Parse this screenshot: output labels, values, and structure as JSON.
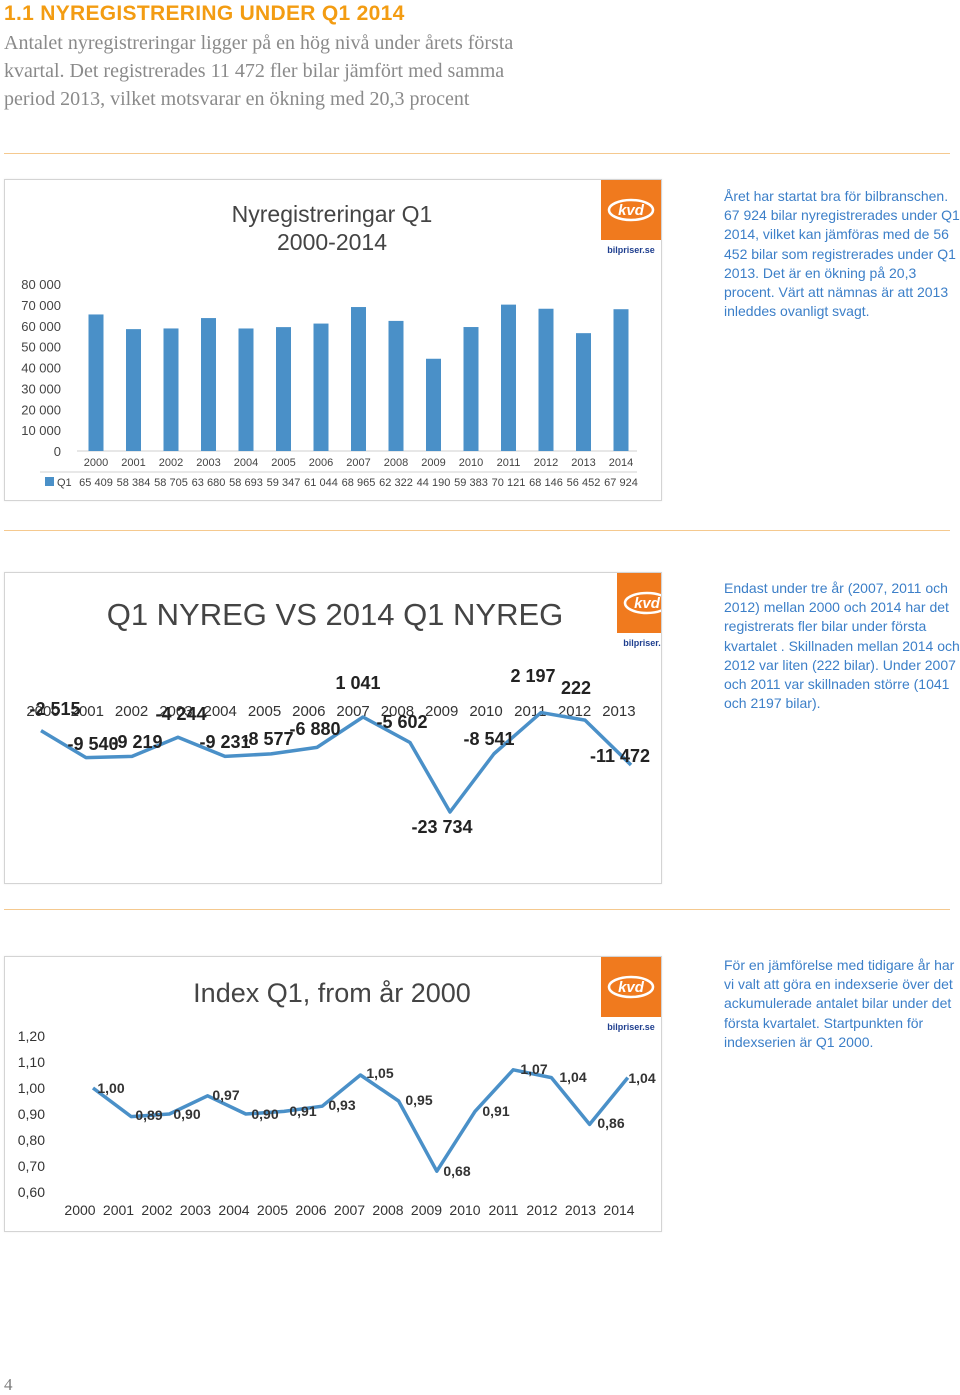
{
  "header": {
    "title": "1.1 NYREGISTRERING UNDER Q1 2014",
    "lead": [
      "Antalet nyregistreringar ligger på en hög nivå under årets första",
      "kvartal. Det registrerades 11 472 fler bilar jämfört med samma",
      "period 2013, vilket motsvarar en ökning med 20,3 procent"
    ]
  },
  "logo": {
    "mark": "kvd",
    "site": "bilpriser.se",
    "color": "#f07a1e"
  },
  "section1": {
    "side_text": "Året har startat bra för bilbranschen. 67 924 bilar nyregistrerades under Q1 2014, vilket kan jämföras med de 56 452 bilar som registrerades under Q1 2013. Det är en ökning på 20,3 procent. Värt att nämnas är att 2013 inleddes ovanligt svagt."
  },
  "section2": {
    "side_text": "Endast under tre år (2007, 2011 och 2012) mellan 2000 och 2014 har det registrerats fler bilar under första kvartalet . Skillnaden mellan 2014 och 2012 var liten (222 bilar). Under 2007 och 2011 var skillnaden större (1041 och 2197 bilar)."
  },
  "section3": {
    "side_text": "För en jämförelse med tidigare år har vi valt att göra en indexserie över det ackumulerade antalet bilar under det första kvartalet.  Startpunkten för indexserien är Q1 2000."
  },
  "page_number": "4",
  "chart_data": [
    {
      "type": "bar",
      "title": [
        "Nyregistreringar Q1",
        "2000-2014"
      ],
      "categories": [
        "2000",
        "2001",
        "2002",
        "2003",
        "2004",
        "2005",
        "2006",
        "2007",
        "2008",
        "2009",
        "2010",
        "2011",
        "2012",
        "2013",
        "2014"
      ],
      "series": [
        {
          "name": "Q1",
          "values": [
            65409,
            58384,
            58705,
            63680,
            58693,
            59347,
            61044,
            68965,
            62322,
            44190,
            59383,
            70121,
            68146,
            56452,
            67924
          ]
        }
      ],
      "table_labels": [
        "65 409",
        "58 384",
        "58 705",
        "63 680",
        "58 693",
        "59 347",
        "61 044",
        "68 965",
        "62 322",
        "44 190",
        "59 383",
        "70 121",
        "68 146",
        "56 452",
        "67 924"
      ],
      "yticks": [
        "0",
        "10 000",
        "20 000",
        "30 000",
        "40 000",
        "50 000",
        "60 000",
        "70 000",
        "80 000"
      ],
      "ylim": [
        0,
        80000
      ],
      "grid": false,
      "legend": "data-table-left",
      "color": "#4a90c8"
    },
    {
      "type": "line",
      "title": "Q1 NYREG VS 2014 Q1 NYREG",
      "categories": [
        "2000",
        "2001",
        "2002",
        "2003",
        "2004",
        "2005",
        "2006",
        "2007",
        "2008",
        "2009",
        "2010",
        "2011",
        "2012",
        "2013"
      ],
      "values": [
        -2515,
        -9540,
        -9219,
        -4244,
        -9231,
        -8577,
        -6880,
        1041,
        -5602,
        -23734,
        -8541,
        2197,
        222,
        -11472
      ],
      "value_labels": [
        "-2 515",
        "-9 540",
        "-9 219",
        "-4 244",
        "-9 231",
        "-8 577",
        "-6 880",
        "1 041",
        "-5 602",
        "-23 734",
        "-8 541",
        "2 197",
        "222",
        "-11 472"
      ],
      "ylim": [
        -25000,
        4000
      ],
      "grid": false,
      "color": "#4a90c8"
    },
    {
      "type": "line",
      "title": "Index Q1, from år 2000",
      "categories": [
        "2000",
        "2001",
        "2002",
        "2003",
        "2004",
        "2005",
        "2006",
        "2007",
        "2008",
        "2009",
        "2010",
        "2011",
        "2012",
        "2013",
        "2014"
      ],
      "values": [
        1.0,
        0.89,
        0.9,
        0.97,
        0.9,
        0.91,
        0.93,
        1.05,
        0.95,
        0.68,
        0.91,
        1.07,
        1.04,
        0.86,
        1.04
      ],
      "value_labels": [
        "1,00",
        "0,89",
        "0,90",
        "0,97",
        "0,90",
        "0,91",
        "0,93",
        "1,05",
        "0,95",
        "0,68",
        "0,91",
        "1,07",
        "1,04",
        "0,86",
        "1,04"
      ],
      "yticks": [
        "0,60",
        "0,70",
        "0,80",
        "0,90",
        "1,00",
        "1,10",
        "1,20"
      ],
      "ylim": [
        0.6,
        1.2
      ],
      "grid": false,
      "color": "#4a90c8"
    }
  ]
}
